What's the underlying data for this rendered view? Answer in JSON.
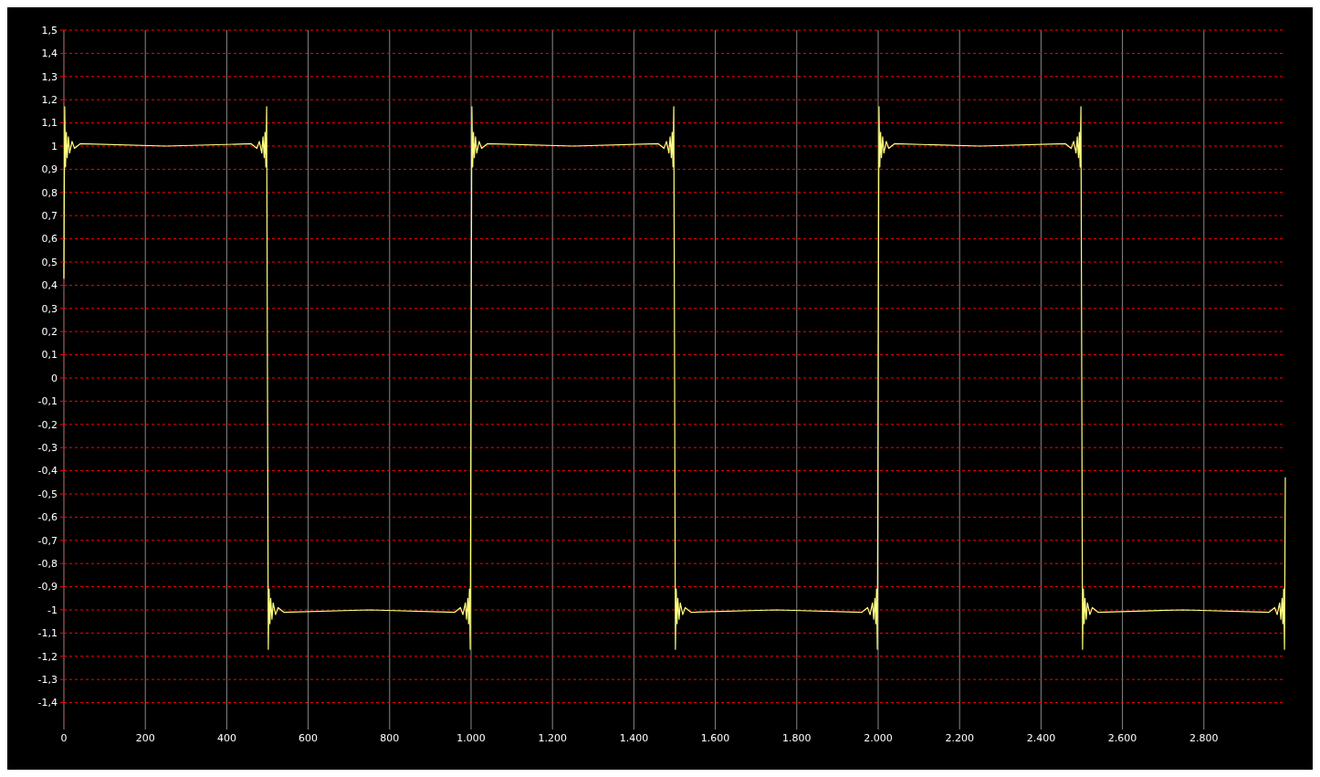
{
  "chart_data": {
    "type": "line",
    "xlim": [
      0,
      3000
    ],
    "ylim": [
      -1.5,
      1.5
    ],
    "xticks": [
      0,
      200,
      400,
      600,
      800,
      {
        "value": 1000,
        "label": "1.000"
      },
      {
        "value": 1200,
        "label": "1.200"
      },
      {
        "value": 1400,
        "label": "1.400"
      },
      {
        "value": 1600,
        "label": "1.600"
      },
      {
        "value": 1800,
        "label": "1.800"
      },
      {
        "value": 2000,
        "label": "2.000"
      },
      {
        "value": 2200,
        "label": "2.200"
      },
      {
        "value": 2400,
        "label": "2.400"
      },
      {
        "value": 2600,
        "label": "2.600"
      },
      {
        "value": 2800,
        "label": "2.800"
      }
    ],
    "yticks": [
      {
        "value": -1.4,
        "label": "-1,4"
      },
      {
        "value": -1.3,
        "label": "-1,3"
      },
      {
        "value": -1.2,
        "label": "-1,2"
      },
      {
        "value": -1.1,
        "label": "-1,1"
      },
      -1,
      {
        "value": -0.9,
        "label": "-0,9"
      },
      {
        "value": -0.8,
        "label": "-0,8"
      },
      {
        "value": -0.7,
        "label": "-0,7"
      },
      {
        "value": -0.6,
        "label": "-0,6"
      },
      {
        "value": -0.5,
        "label": "-0,5"
      },
      {
        "value": -0.4,
        "label": "-0,4"
      },
      {
        "value": -0.3,
        "label": "-0,3"
      },
      {
        "value": -0.2,
        "label": "-0,2"
      },
      {
        "value": -0.1,
        "label": "-0,1"
      },
      0,
      {
        "value": 0.1,
        "label": "0,1"
      },
      {
        "value": 0.2,
        "label": "0,2"
      },
      {
        "value": 0.3,
        "label": "0,3"
      },
      {
        "value": 0.4,
        "label": "0,4"
      },
      {
        "value": 0.5,
        "label": "0,5"
      },
      {
        "value": 0.6,
        "label": "0,6"
      },
      {
        "value": 0.7,
        "label": "0,7"
      },
      {
        "value": 0.8,
        "label": "0,8"
      },
      {
        "value": 0.9,
        "label": "0,9"
      },
      1,
      {
        "value": 1.1,
        "label": "1,1"
      },
      {
        "value": 1.2,
        "label": "1,2"
      },
      {
        "value": 1.3,
        "label": "1,3"
      },
      {
        "value": 1.4,
        "label": "1,4"
      },
      {
        "value": 1.5,
        "label": "1,5"
      }
    ],
    "grid": true,
    "marker": "none",
    "line_style": "solid",
    "series": [
      {
        "color": "#ffff80",
        "x": [
          0,
          2,
          4,
          6,
          8,
          11,
          14,
          20,
          26,
          40,
          250,
          460,
          474,
          480,
          486,
          489,
          492,
          494,
          496,
          498,
          500,
          502,
          504,
          506,
          508,
          511,
          514,
          520,
          526,
          540,
          750,
          960,
          974,
          980,
          986,
          989,
          992,
          994,
          996,
          998,
          1000,
          1002,
          1004,
          1006,
          1008,
          1011,
          1014,
          1020,
          1026,
          1040,
          1250,
          1460,
          1474,
          1480,
          1486,
          1489,
          1492,
          1494,
          1496,
          1498,
          1500,
          1502,
          1504,
          1506,
          1508,
          1511,
          1514,
          1520,
          1526,
          1540,
          1750,
          1960,
          1974,
          1980,
          1986,
          1989,
          1992,
          1994,
          1996,
          1998,
          2000,
          2002,
          2004,
          2006,
          2008,
          2011,
          2014,
          2020,
          2026,
          2040,
          2250,
          2460,
          2474,
          2480,
          2486,
          2489,
          2492,
          2494,
          2496,
          2498,
          2500,
          2502,
          2504,
          2506,
          2508,
          2511,
          2514,
          2520,
          2526,
          2540,
          2750,
          2960,
          2974,
          2980,
          2986,
          2989,
          2992,
          2994,
          2996,
          2998,
          3000
        ],
        "values": [
          0.43,
          1.17,
          0.91,
          1.06,
          0.95,
          1.04,
          0.97,
          1.02,
          0.99,
          1.01,
          1.0,
          1.01,
          0.99,
          1.02,
          0.97,
          1.04,
          0.95,
          1.06,
          0.91,
          1.17,
          0,
          -1.17,
          -0.91,
          -1.06,
          -0.95,
          -1.04,
          -0.97,
          -1.02,
          -0.99,
          -1.01,
          -1.0,
          -1.01,
          -0.99,
          -1.02,
          -0.97,
          -1.04,
          -0.95,
          -1.06,
          -0.91,
          -1.17,
          0,
          1.17,
          0.91,
          1.06,
          0.95,
          1.04,
          0.97,
          1.02,
          0.99,
          1.01,
          1.0,
          1.01,
          0.99,
          1.02,
          0.97,
          1.04,
          0.95,
          1.06,
          0.91,
          1.17,
          0,
          -1.17,
          -0.91,
          -1.06,
          -0.95,
          -1.04,
          -0.97,
          -1.02,
          -0.99,
          -1.01,
          -1.0,
          -1.01,
          -0.99,
          -1.02,
          -0.97,
          -1.04,
          -0.95,
          -1.06,
          -0.91,
          -1.17,
          0,
          1.17,
          0.91,
          1.06,
          0.95,
          1.04,
          0.97,
          1.02,
          0.99,
          1.01,
          1.0,
          1.01,
          0.99,
          1.02,
          0.97,
          1.04,
          0.95,
          1.06,
          0.91,
          1.17,
          0,
          -1.17,
          -0.91,
          -1.06,
          -0.95,
          -1.04,
          -0.97,
          -1.02,
          -0.99,
          -1.01,
          -1.0,
          -1.01,
          -0.99,
          -1.02,
          -0.97,
          -1.04,
          -0.95,
          -1.06,
          -0.91,
          -1.17,
          -0.43
        ]
      }
    ]
  }
}
